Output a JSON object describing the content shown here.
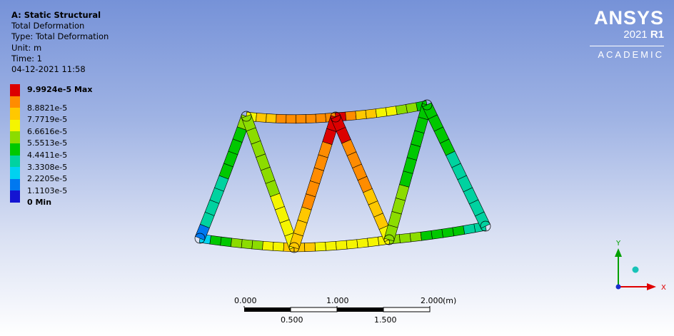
{
  "header": {
    "title": "A: Static Structural",
    "lines": [
      "Total Deformation",
      "Type: Total Deformation",
      "Unit: m",
      "Time: 1",
      "04-12-2021 11:58"
    ]
  },
  "legend": {
    "items": [
      {
        "label": "9.9924e-5 Max",
        "color": "#dc0000"
      },
      {
        "label": "8.8821e-5",
        "color": "#ff8c00"
      },
      {
        "label": "7.7719e-5",
        "color": "#ffc800"
      },
      {
        "label": "6.6616e-5",
        "color": "#f5f500"
      },
      {
        "label": "5.5513e-5",
        "color": "#8cdc00"
      },
      {
        "label": "4.4411e-5",
        "color": "#00c800"
      },
      {
        "label": "3.3308e-5",
        "color": "#00d2a0"
      },
      {
        "label": "2.2205e-5",
        "color": "#00d2f0"
      },
      {
        "label": "1.1103e-5",
        "color": "#0078f0"
      },
      {
        "label": "0 Min",
        "color": "#1414d2"
      }
    ]
  },
  "logo": {
    "brand": "ANSYS",
    "version": "2021",
    "release": "R1",
    "edition": "ACADEMIC"
  },
  "scale": {
    "top_labels": [
      "0.000",
      "1.000",
      "2.000"
    ],
    "unit": "(m)",
    "bottom_labels": [
      "0.500",
      "1.500"
    ]
  },
  "triad": {
    "x_label": "X",
    "y_label": "Y"
  },
  "colors": {
    "background_top": "#7692d8",
    "background_bottom": "#ffffff"
  }
}
